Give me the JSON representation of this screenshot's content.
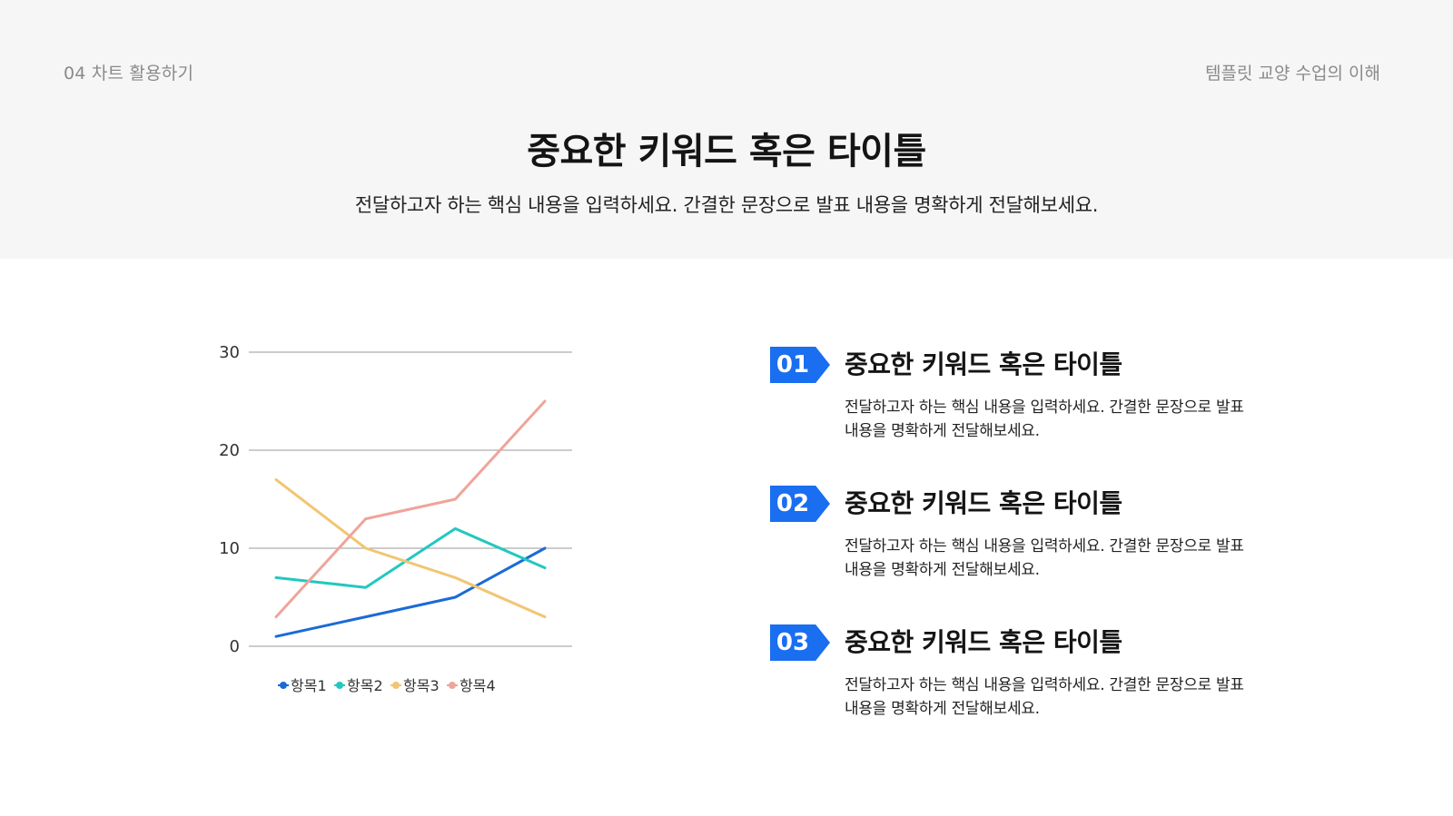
{
  "header": {
    "section_label": "04 차트 활용하기",
    "doc_title": "템플릿 교양 수업의 이해",
    "title": "중요한 키워드 혹은 타이틀",
    "subtitle": "전달하고자 하는 핵심 내용을 입력하세요. 간결한 문장으로 발표 내용을 명확하게 전달해보세요."
  },
  "items": [
    {
      "number": "01",
      "title": "중요한 키워드 혹은 타이틀",
      "desc_line1": "전달하고자 하는 핵심 내용을 입력하세요. 간결한 문장으로 발표",
      "desc_line2": "내용을 명확하게 전달해보세요."
    },
    {
      "number": "02",
      "title": "중요한 키워드 혹은 타이틀",
      "desc_line1": "전달하고자 하는 핵심 내용을 입력하세요. 간결한 문장으로 발표",
      "desc_line2": "내용을 명확하게 전달해보세요."
    },
    {
      "number": "03",
      "title": "중요한 키워드 혹은 타이틀",
      "desc_line1": "전달하고자 하는 핵심 내용을 입력하세요. 간결한 문장으로 발표",
      "desc_line2": "내용을 명확하게 전달해보세요."
    }
  ],
  "colors": {
    "accent": "#1a6ef0",
    "series1": "#1a6ad8",
    "series2": "#22c8c0",
    "series3": "#f2c572",
    "series4": "#f0a49a",
    "grid": "#999999"
  },
  "chart_data": {
    "type": "line",
    "title": "",
    "xlabel": "",
    "ylabel": "",
    "x": [
      1,
      2,
      3,
      4
    ],
    "ylim": [
      0,
      30
    ],
    "yticks": [
      0,
      10,
      20,
      30
    ],
    "grid": true,
    "legend": "bottom",
    "series": [
      {
        "name": "항목1",
        "values": [
          1,
          3,
          5,
          10
        ]
      },
      {
        "name": "항목2",
        "values": [
          7,
          6,
          12,
          8
        ]
      },
      {
        "name": "항목3",
        "values": [
          17,
          10,
          7,
          3
        ]
      },
      {
        "name": "항목4",
        "values": [
          3,
          13,
          15,
          25
        ]
      }
    ]
  }
}
